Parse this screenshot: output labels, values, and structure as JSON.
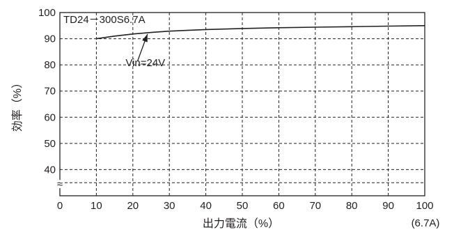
{
  "chart_data": {
    "type": "line",
    "title": "TD24－300S6.7A",
    "xlabel": "出力電流（%）",
    "x_unit_note": "(6.7A)",
    "ylabel": "効率（%）",
    "x_ticks": [
      "0",
      "10",
      "20",
      "30",
      "40",
      "50",
      "60",
      "70",
      "80",
      "90",
      "100"
    ],
    "y_ticks": [
      "40",
      "50",
      "60",
      "70",
      "80",
      "90",
      "100"
    ],
    "axis_break_symbol": "≈",
    "xlim": [
      0,
      100
    ],
    "ylim": [
      30,
      100
    ],
    "grid": true,
    "series": [
      {
        "name": "Vin=24V",
        "x": [
          10,
          15,
          20,
          25,
          30,
          40,
          50,
          60,
          70,
          80,
          90,
          100
        ],
        "y": [
          90.0,
          91.0,
          91.8,
          92.4,
          92.9,
          93.5,
          93.9,
          94.2,
          94.4,
          94.6,
          94.8,
          95.0
        ]
      }
    ],
    "annotation": {
      "text": "Vin=24V",
      "points_to": {
        "x": 24,
        "y": 92.3
      }
    }
  }
}
